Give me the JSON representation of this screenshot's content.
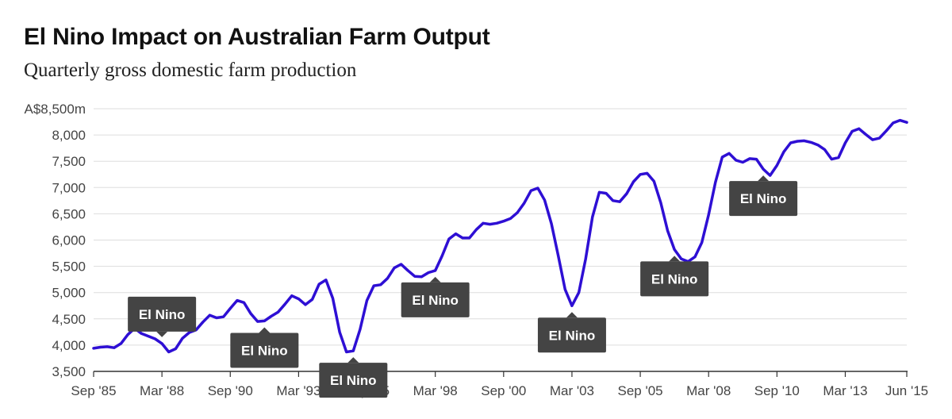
{
  "title": "El Nino Impact on Australian Farm Output",
  "subtitle": "Quarterly gross domestic farm production",
  "colors": {
    "line": "#2e0fd4",
    "annotation_bg": "#444444",
    "grid": "#dddddd",
    "axis": "#333333"
  },
  "chart_data": {
    "type": "line",
    "title": "El Nino Impact on Australian Farm Output",
    "subtitle": "Quarterly gross domestic farm production",
    "xlabel": "",
    "ylabel": "",
    "ylim": [
      3500,
      8500
    ],
    "yticks": [
      3500,
      4000,
      4500,
      5000,
      5500,
      6000,
      6500,
      7000,
      7500,
      8000,
      8500
    ],
    "ytick_labels": [
      "3,500",
      "4,000",
      "4,500",
      "5,000",
      "5,500",
      "6,000",
      "6,500",
      "7,000",
      "7,500",
      "8,000",
      "A$8,500m"
    ],
    "xlim": [
      "Sep '85",
      "Jun '15"
    ],
    "xtick_labels": [
      "Sep '85",
      "Mar '88",
      "Sep '90",
      "Mar '93",
      "Sep '95",
      "Mar '98",
      "Sep '00",
      "Mar '03",
      "Sep '05",
      "Mar '08",
      "Sep '10",
      "Mar '13",
      "Jun '15"
    ],
    "xtick_positions": [
      0,
      10,
      20,
      30,
      40,
      50,
      60,
      70,
      80,
      90,
      100,
      110,
      119
    ],
    "grid": true,
    "series": [
      {
        "values": [
          3940,
          3960,
          3970,
          3950,
          4030,
          4200,
          4320,
          4220,
          4170,
          4120,
          4030,
          3870,
          3930,
          4130,
          4240,
          4290,
          4440,
          4570,
          4520,
          4540,
          4700,
          4850,
          4810,
          4600,
          4450,
          4460,
          4550,
          4630,
          4780,
          4940,
          4880,
          4770,
          4870,
          5160,
          5240,
          4890,
          4250,
          3870,
          3890,
          4300,
          4850,
          5130,
          5150,
          5270,
          5470,
          5540,
          5420,
          5310,
          5300,
          5380,
          5420,
          5700,
          6020,
          6120,
          6040,
          6040,
          6200,
          6320,
          6300,
          6320,
          6360,
          6410,
          6520,
          6700,
          6940,
          6990,
          6760,
          6310,
          5700,
          5060,
          4750,
          5000,
          5640,
          6440,
          6910,
          6890,
          6750,
          6730,
          6880,
          7110,
          7250,
          7270,
          7120,
          6710,
          6180,
          5820,
          5640,
          5590,
          5680,
          5950,
          6480,
          7100,
          7580,
          7650,
          7520,
          7480,
          7550,
          7540,
          7350,
          7230,
          7420,
          7680,
          7850,
          7880,
          7890,
          7860,
          7810,
          7720,
          7540,
          7570,
          7850,
          8070,
          8120,
          8010,
          7910,
          7940,
          8080,
          8230,
          8280,
          8240
        ]
      }
    ],
    "annotations": [
      {
        "text": "El Nino",
        "index": 10,
        "value": 4030,
        "placement": "above"
      },
      {
        "text": "El Nino",
        "index": 25,
        "value": 4460,
        "placement": "below"
      },
      {
        "text": "El Nino",
        "index": 38,
        "value": 3890,
        "placement": "below"
      },
      {
        "text": "El Nino",
        "index": 50,
        "value": 5420,
        "placement": "below"
      },
      {
        "text": "El Nino",
        "index": 70,
        "value": 4750,
        "placement": "below"
      },
      {
        "text": "El Nino",
        "index": 85,
        "value": 5820,
        "placement": "below"
      },
      {
        "text": "El Nino",
        "index": 98,
        "value": 7350,
        "placement": "below"
      }
    ]
  }
}
